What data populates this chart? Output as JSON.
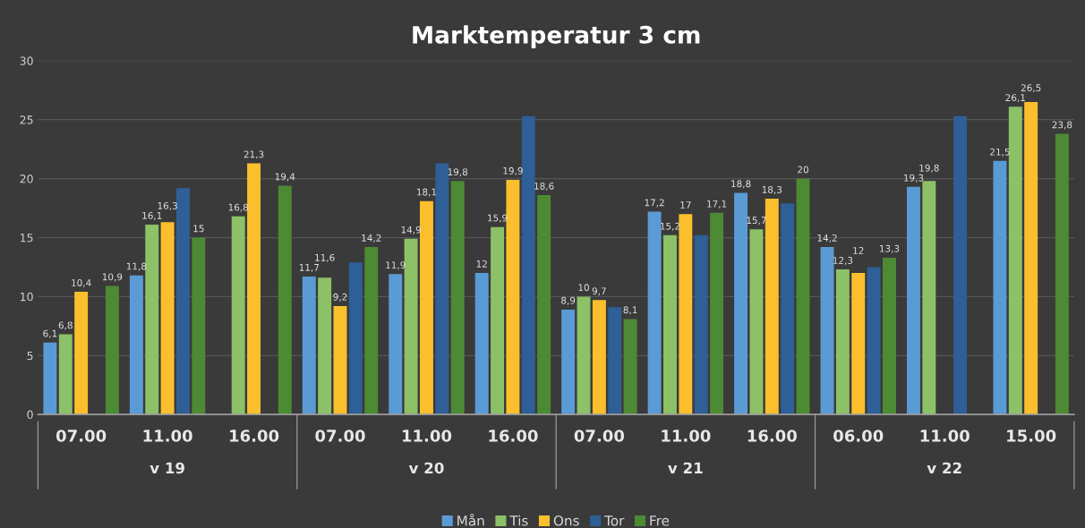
{
  "chart_data": {
    "type": "bar",
    "title": "Marktemperatur 3 cm",
    "categories": [
      "07.00",
      "11.00",
      "16.00",
      "07.00",
      "11.00",
      "16.00",
      "07.00",
      "11.00",
      "16.00",
      "06.00",
      "11.00",
      "15.00"
    ],
    "annotations": [
      "v 19",
      "v 20",
      "v 21",
      "v 22"
    ],
    "series": [
      {
        "name": "Mån",
        "color": "#5b9bd5",
        "values": [
          6.1,
          11.8,
          null,
          11.7,
          11.9,
          12,
          8.9,
          17.2,
          18.8,
          14.2,
          19.3,
          21.5
        ],
        "value_labels": [
          "6,1",
          "11,8",
          null,
          "11,7",
          "11,9",
          "12",
          "8,9",
          "17,2",
          "18,8",
          "14,2",
          "19,3",
          "21,5"
        ]
      },
      {
        "name": "Tis",
        "color": "#8cc168",
        "values": [
          6.8,
          16.1,
          16.8,
          11.6,
          14.9,
          15.9,
          10,
          15.2,
          15.7,
          12.3,
          19.8,
          26.1
        ],
        "value_labels": [
          "6,8",
          "16,1",
          "16,8",
          "11,6",
          "14,9",
          "15,9",
          "10",
          "15,2",
          "15,7",
          "12,3",
          "19,8",
          "26,1"
        ]
      },
      {
        "name": "Ons",
        "color": "#fbbf2d",
        "values": [
          10.4,
          16.3,
          21.3,
          9.2,
          18.1,
          19.9,
          9.7,
          17,
          18.3,
          12,
          null,
          26.5
        ],
        "value_labels": [
          "10,4",
          "16,3",
          "21,3",
          "9,2",
          "18,1",
          "19,9",
          "9,7",
          "17",
          "18,3",
          "12",
          null,
          "26,5"
        ]
      },
      {
        "name": "Tor",
        "color": "#2e5f96",
        "values": [
          null,
          19.2,
          null,
          12.9,
          21.3,
          25.3,
          9.1,
          15.2,
          17.9,
          12.5,
          25.3,
          null
        ],
        "value_labels": [
          null,
          null,
          null,
          null,
          null,
          null,
          null,
          null,
          null,
          null,
          null,
          null
        ]
      },
      {
        "name": "Fre",
        "color": "#4d8a34",
        "values": [
          10.9,
          15,
          19.4,
          14.2,
          19.8,
          18.6,
          8.1,
          17.1,
          20,
          13.3,
          null,
          23.8
        ],
        "value_labels": [
          "10,9",
          "15",
          "19,4",
          "14,2",
          "19,8",
          "18,6",
          "8,1",
          "17,1",
          "20",
          "13,3",
          null,
          "23,8"
        ]
      }
    ],
    "ylim": [
      0,
      30
    ],
    "yticks": [
      0,
      5,
      10,
      15,
      20,
      25,
      30
    ],
    "grid": "y",
    "legend": "bottom"
  }
}
